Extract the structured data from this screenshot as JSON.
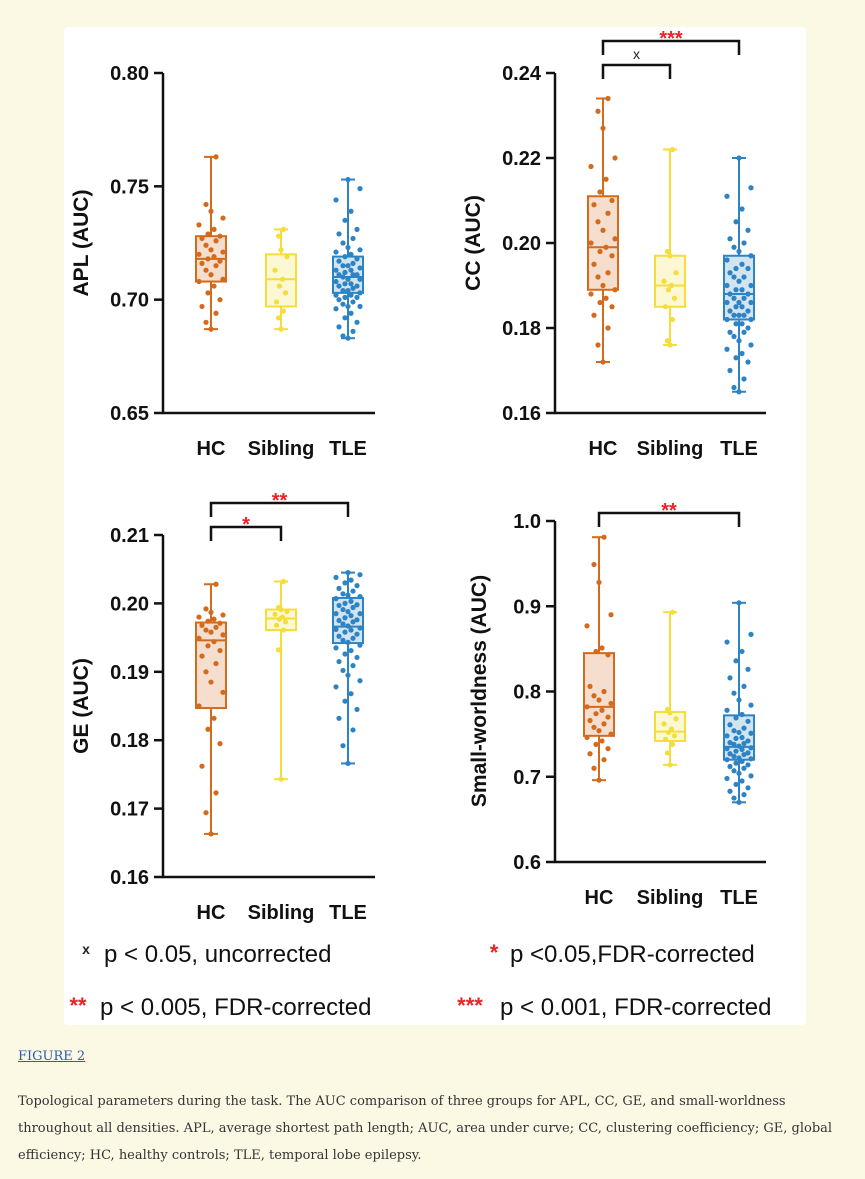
{
  "figure": {
    "link_text": "FIGURE 2",
    "caption": "Topological parameters during the task. The AUC comparison of three groups for APL, CC, GE, and small-worldness throughout all densities. APL, average shortest path length; AUC, area under curve; CC, clustering coefficiency; GE, global efficiency; HC, healthy controls; TLE, temporal lobe epilepsy."
  },
  "legend": {
    "items": [
      {
        "symbol": "x",
        "text": "p < 0.05, uncorrected",
        "color": "#222222"
      },
      {
        "symbol": "*",
        "text": "p <0.05,FDR-corrected",
        "color": "#e8232a"
      },
      {
        "symbol": "**",
        "text": "p < 0.005, FDR-corrected",
        "color": "#e8232a"
      },
      {
        "symbol": "***",
        "text": "p < 0.001, FDR-corrected",
        "color": "#e8232a"
      }
    ]
  },
  "colors": {
    "HC": "#d36a1c",
    "Sibling": "#f3de3a",
    "TLE": "#2d83c3",
    "significance": "#e8232a"
  },
  "chart_data": [
    {
      "type": "box",
      "ylabel": "APL (AUC)",
      "categories": [
        "HC",
        "Sibling",
        "TLE"
      ],
      "ylim": [
        0.65,
        0.8
      ],
      "yticks": [
        "0.65",
        "0.70",
        "0.75",
        "0.80"
      ],
      "series": [
        {
          "group": "HC",
          "min": 0.687,
          "q1": 0.708,
          "median": 0.718,
          "q3": 0.728,
          "max": 0.763,
          "points": [
            0.763,
            0.742,
            0.739,
            0.736,
            0.733,
            0.731,
            0.729,
            0.728,
            0.727,
            0.726,
            0.724,
            0.722,
            0.721,
            0.72,
            0.719,
            0.718,
            0.717,
            0.716,
            0.715,
            0.713,
            0.711,
            0.709,
            0.708,
            0.706,
            0.703,
            0.7,
            0.697,
            0.694,
            0.69,
            0.687
          ]
        },
        {
          "group": "Sibling",
          "min": 0.687,
          "q1": 0.697,
          "median": 0.709,
          "q3": 0.72,
          "max": 0.731,
          "points": [
            0.731,
            0.728,
            0.722,
            0.719,
            0.713,
            0.709,
            0.706,
            0.703,
            0.699,
            0.695,
            0.692,
            0.687
          ]
        },
        {
          "group": "TLE",
          "min": 0.683,
          "q1": 0.703,
          "median": 0.71,
          "q3": 0.719,
          "max": 0.753,
          "points": [
            0.753,
            0.749,
            0.744,
            0.739,
            0.735,
            0.731,
            0.729,
            0.727,
            0.725,
            0.723,
            0.722,
            0.721,
            0.72,
            0.719,
            0.718,
            0.717,
            0.716,
            0.715,
            0.714,
            0.713,
            0.713,
            0.712,
            0.711,
            0.711,
            0.71,
            0.709,
            0.709,
            0.708,
            0.707,
            0.706,
            0.706,
            0.705,
            0.704,
            0.703,
            0.702,
            0.702,
            0.701,
            0.7,
            0.699,
            0.698,
            0.697,
            0.696,
            0.694,
            0.692,
            0.69,
            0.688,
            0.686,
            0.684,
            0.683,
            0.704,
            0.707,
            0.711,
            0.715,
            0.701,
            0.697
          ]
        }
      ],
      "significance": []
    },
    {
      "type": "box",
      "ylabel": "CC (AUC)",
      "categories": [
        "HC",
        "Sibling",
        "TLE"
      ],
      "ylim": [
        0.16,
        0.24
      ],
      "yticks": [
        "0.16",
        "0.18",
        "0.20",
        "0.22",
        "0.24"
      ],
      "series": [
        {
          "group": "HC",
          "min": 0.172,
          "q1": 0.189,
          "median": 0.199,
          "q3": 0.211,
          "max": 0.234,
          "points": [
            0.234,
            0.231,
            0.227,
            0.22,
            0.218,
            0.215,
            0.212,
            0.21,
            0.209,
            0.207,
            0.205,
            0.203,
            0.201,
            0.2,
            0.199,
            0.198,
            0.197,
            0.195,
            0.193,
            0.192,
            0.19,
            0.189,
            0.188,
            0.187,
            0.186,
            0.185,
            0.183,
            0.18,
            0.176,
            0.172
          ]
        },
        {
          "group": "Sibling",
          "min": 0.176,
          "q1": 0.185,
          "median": 0.19,
          "q3": 0.197,
          "max": 0.222,
          "points": [
            0.222,
            0.198,
            0.197,
            0.193,
            0.191,
            0.19,
            0.189,
            0.187,
            0.185,
            0.182,
            0.177,
            0.176
          ]
        },
        {
          "group": "TLE",
          "min": 0.165,
          "q1": 0.182,
          "median": 0.188,
          "q3": 0.197,
          "max": 0.22,
          "points": [
            0.22,
            0.213,
            0.211,
            0.208,
            0.205,
            0.203,
            0.201,
            0.2,
            0.199,
            0.198,
            0.197,
            0.196,
            0.195,
            0.194,
            0.193,
            0.192,
            0.191,
            0.19,
            0.19,
            0.189,
            0.189,
            0.188,
            0.188,
            0.187,
            0.187,
            0.186,
            0.186,
            0.185,
            0.185,
            0.184,
            0.184,
            0.183,
            0.183,
            0.182,
            0.182,
            0.181,
            0.18,
            0.179,
            0.178,
            0.177,
            0.176,
            0.175,
            0.174,
            0.173,
            0.172,
            0.17,
            0.168,
            0.166,
            0.165,
            0.192,
            0.186,
            0.183,
            0.194,
            0.179,
            0.181
          ]
        }
      ],
      "significance": [
        {
          "from": "HC",
          "to": "Sibling",
          "label": "x",
          "color": "#222222",
          "level": 1
        },
        {
          "from": "HC",
          "to": "TLE",
          "label": "***",
          "color": "#e8232a",
          "level": 2
        }
      ]
    },
    {
      "type": "box",
      "ylabel": "GE (AUC)",
      "categories": [
        "HC",
        "Sibling",
        "TLE"
      ],
      "ylim": [
        0.16,
        0.21
      ],
      "yticks": [
        "0.16",
        "0.17",
        "0.18",
        "0.19",
        "0.20",
        "0.21"
      ],
      "series": [
        {
          "group": "HC",
          "min": 0.1663,
          "q1": 0.1847,
          "median": 0.1946,
          "q3": 0.1972,
          "max": 0.2028,
          "points": [
            0.2028,
            0.1992,
            0.1987,
            0.1983,
            0.198,
            0.1977,
            0.1974,
            0.1971,
            0.1968,
            0.1965,
            0.1961,
            0.1958,
            0.1954,
            0.1949,
            0.1944,
            0.1938,
            0.1931,
            0.1923,
            0.1912,
            0.19,
            0.1885,
            0.187,
            0.185,
            0.1832,
            0.1816,
            0.1795,
            0.1762,
            0.1723,
            0.1694,
            0.1663
          ]
        },
        {
          "group": "Sibling",
          "min": 0.1743,
          "q1": 0.1961,
          "median": 0.1978,
          "q3": 0.1991,
          "max": 0.2032,
          "points": [
            0.2032,
            0.1994,
            0.1991,
            0.1988,
            0.1984,
            0.198,
            0.1977,
            0.1973,
            0.1968,
            0.1961,
            0.1932,
            0.1743
          ]
        },
        {
          "group": "TLE",
          "min": 0.1766,
          "q1": 0.1942,
          "median": 0.1966,
          "q3": 0.2008,
          "max": 0.2045,
          "points": [
            0.2045,
            0.2042,
            0.2038,
            0.2034,
            0.203,
            0.2026,
            0.2022,
            0.2018,
            0.2014,
            0.201,
            0.2007,
            0.2003,
            0.2,
            0.1997,
            0.1994,
            0.1991,
            0.1988,
            0.1985,
            0.1982,
            0.1979,
            0.1976,
            0.1973,
            0.197,
            0.1967,
            0.1964,
            0.1961,
            0.1958,
            0.1955,
            0.1952,
            0.1949,
            0.1946,
            0.1943,
            0.1939,
            0.1935,
            0.1931,
            0.1926,
            0.1921,
            0.1915,
            0.1909,
            0.1902,
            0.1895,
            0.1887,
            0.1878,
            0.1868,
            0.1857,
            0.1845,
            0.1832,
            0.1815,
            0.1792,
            0.1766,
            0.1998,
            0.2012,
            0.1985,
            0.1962,
            0.1975
          ]
        }
      ],
      "significance": [
        {
          "from": "HC",
          "to": "Sibling",
          "label": "*",
          "color": "#e8232a",
          "level": 1
        },
        {
          "from": "HC",
          "to": "TLE",
          "label": "**",
          "color": "#e8232a",
          "level": 2
        }
      ]
    },
    {
      "type": "box",
      "ylabel": "Small-worldness (AUC)",
      "categories": [
        "HC",
        "Sibling",
        "TLE"
      ],
      "ylim": [
        0.6,
        1.0
      ],
      "yticks": [
        "0.6",
        "0.7",
        "0.8",
        "0.9",
        "1.0"
      ],
      "series": [
        {
          "group": "HC",
          "min": 0.696,
          "q1": 0.748,
          "median": 0.782,
          "q3": 0.845,
          "max": 0.981,
          "points": [
            0.981,
            0.949,
            0.928,
            0.89,
            0.877,
            0.851,
            0.847,
            0.843,
            0.806,
            0.8,
            0.795,
            0.79,
            0.786,
            0.782,
            0.778,
            0.774,
            0.77,
            0.766,
            0.762,
            0.758,
            0.754,
            0.75,
            0.746,
            0.742,
            0.738,
            0.733,
            0.727,
            0.72,
            0.71,
            0.696
          ]
        },
        {
          "group": "Sibling",
          "min": 0.714,
          "q1": 0.742,
          "median": 0.753,
          "q3": 0.776,
          "max": 0.893,
          "points": [
            0.893,
            0.779,
            0.775,
            0.768,
            0.762,
            0.756,
            0.752,
            0.748,
            0.744,
            0.738,
            0.728,
            0.714
          ]
        },
        {
          "group": "TLE",
          "min": 0.67,
          "q1": 0.72,
          "median": 0.735,
          "q3": 0.772,
          "max": 0.904,
          "points": [
            0.904,
            0.867,
            0.858,
            0.847,
            0.836,
            0.826,
            0.816,
            0.806,
            0.798,
            0.79,
            0.784,
            0.778,
            0.773,
            0.769,
            0.765,
            0.761,
            0.757,
            0.754,
            0.751,
            0.748,
            0.745,
            0.742,
            0.74,
            0.738,
            0.736,
            0.734,
            0.732,
            0.73,
            0.728,
            0.726,
            0.724,
            0.722,
            0.72,
            0.718,
            0.716,
            0.714,
            0.712,
            0.71,
            0.707,
            0.704,
            0.701,
            0.698,
            0.695,
            0.691,
            0.687,
            0.683,
            0.679,
            0.675,
            0.67,
            0.739,
            0.733,
            0.746,
            0.727,
            0.752,
            0.721
          ]
        }
      ],
      "significance": [
        {
          "from": "HC",
          "to": "TLE",
          "label": "**",
          "color": "#e8232a",
          "level": 1
        }
      ]
    }
  ]
}
